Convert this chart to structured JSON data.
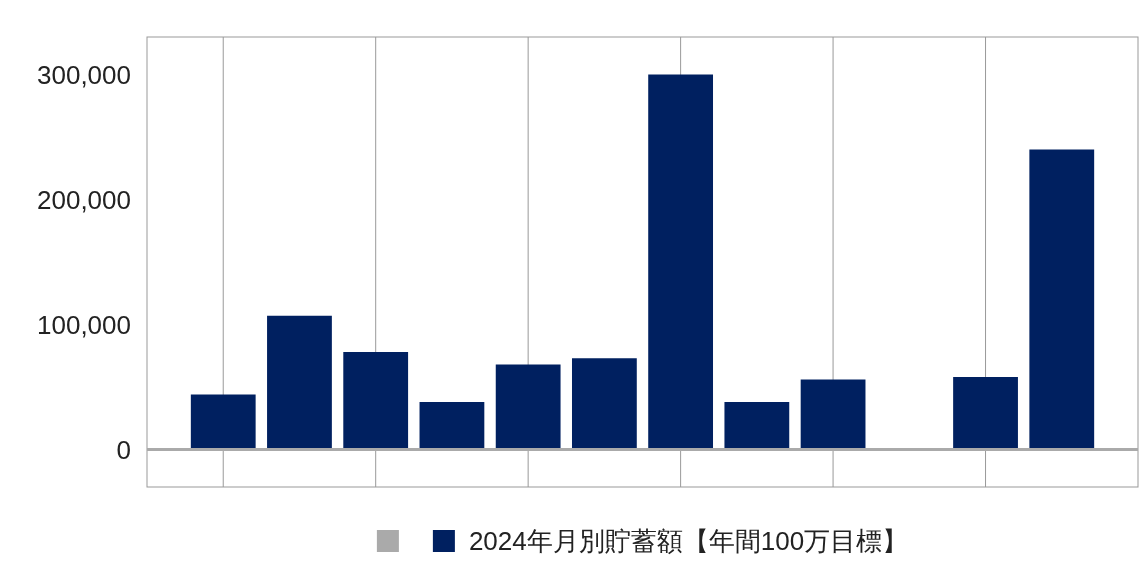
{
  "chart_data": {
    "type": "bar",
    "categories": [
      null,
      null,
      null,
      null,
      null,
      null,
      null,
      null,
      null,
      null,
      null,
      null
    ],
    "series": [
      {
        "color": "#aaaaaa",
        "values": [
          null,
          null,
          null,
          null,
          null,
          null,
          null,
          null,
          null,
          null,
          null,
          null
        ]
      },
      {
        "name": "2024年月別貯蓄額【年間100万目標】",
        "color": "#002060",
        "values": [
          44000,
          107000,
          78000,
          38000,
          68000,
          73000,
          300000,
          38000,
          56000,
          null,
          58000,
          240000
        ]
      }
    ],
    "ylim": [
      -30000,
      330000
    ],
    "yticks": [
      {
        "value": 0,
        "label": "0"
      },
      {
        "value": 100000,
        "label": "100,000"
      },
      {
        "value": 200000,
        "label": "200,000"
      },
      {
        "value": 300000,
        "label": "300,000"
      }
    ],
    "grid": "x",
    "legend": "bottom",
    "tick_labels": "y"
  }
}
